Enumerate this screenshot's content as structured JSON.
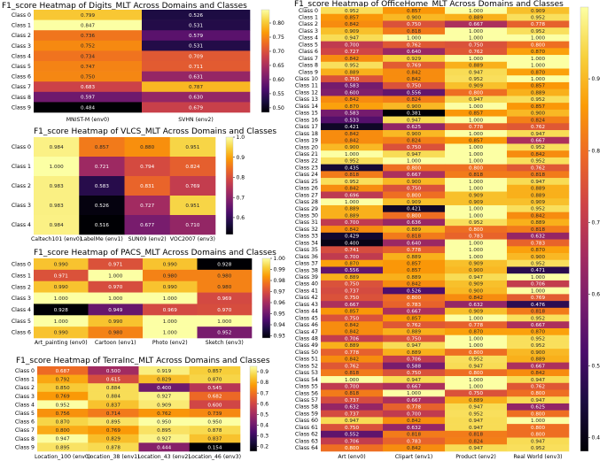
{
  "colormap": [
    "#000004",
    "#1b0c41",
    "#4a0c6b",
    "#781c6d",
    "#a52c60",
    "#cf4446",
    "#ed6925",
    "#fb9b06",
    "#f7d13d",
    "#fcffa4"
  ],
  "chart_data": [
    {
      "type": "heatmap",
      "title": "F1_score Heatmap of Digits_MLT Across Domains and Classes",
      "rows": [
        "Class 0",
        "Class 1",
        "Class 2",
        "Class 3",
        "Class 4",
        "Class 5",
        "Class 6",
        "Class 7",
        "Class 8",
        "Class 9"
      ],
      "columns": [
        "MNIST-M (env0)",
        "SVHN (env2)"
      ],
      "values": [
        [
          0.799,
          0.526
        ],
        [
          0.847,
          0.531
        ],
        [
          0.736,
          0.579
        ],
        [
          0.752,
          0.531
        ],
        [
          0.734,
          0.709
        ],
        [
          0.747,
          0.711
        ],
        [
          0.75,
          0.631
        ],
        [
          0.683,
          0.787
        ],
        [
          0.597,
          0.63
        ],
        [
          0.484,
          0.679
        ]
      ],
      "vmin": 0.484,
      "vmax": 0.847,
      "colorbar_ticks": [
        "0.80",
        "0.75",
        "0.70",
        "0.65",
        "0.60",
        "0.55",
        "0.50"
      ]
    },
    {
      "type": "heatmap",
      "title": "F1_score Heatmap of VLCS_MLT Across Domains and Classes",
      "rows": [
        "Class 0",
        "Class 1",
        "Class 2",
        "Class 3",
        "Class 4"
      ],
      "columns": [
        "Caltech101 (env0)",
        "LabelMe (env1)",
        "SUN09 (env2)",
        "VOC2007 (env3)"
      ],
      "values": [
        [
          0.984,
          0.857,
          0.88,
          0.951
        ],
        [
          1.0,
          0.721,
          0.794,
          0.824
        ],
        [
          0.983,
          0.583,
          0.831,
          0.769
        ],
        [
          0.983,
          0.526,
          0.727,
          0.951
        ],
        [
          0.984,
          0.516,
          0.677,
          0.71
        ]
      ],
      "vmin": 0.516,
      "vmax": 1.0,
      "colorbar_ticks": [
        "1.0",
        "0.9",
        "0.8",
        "0.7",
        "0.6"
      ]
    },
    {
      "type": "heatmap",
      "title": "F1_score Heatmap of PACS_MLT Across Domains and Classes",
      "rows": [
        "Class 0",
        "Class 1",
        "Class 2",
        "Class 3",
        "Class 4",
        "Class 5",
        "Class 6"
      ],
      "columns": [
        "Art_painting (env0)",
        "Cartoon (env1)",
        "Photo (env2)",
        "Sketch (env3)"
      ],
      "values": [
        [
          0.99,
          0.971,
          0.99,
          0.928
        ],
        [
          0.971,
          1.0,
          0.98,
          0.98
        ],
        [
          0.99,
          0.97,
          0.99,
          0.98
        ],
        [
          1.0,
          1.0,
          1.0,
          0.969
        ],
        [
          0.928,
          0.949,
          0.969,
          0.97
        ],
        [
          1.0,
          0.99,
          1.0,
          1.0
        ],
        [
          0.99,
          0.98,
          1.0,
          0.952
        ]
      ],
      "vmin": 0.928,
      "vmax": 1.0,
      "colorbar_ticks": [
        "1.00",
        "0.99",
        "0.98",
        "0.97",
        "0.96",
        "0.95",
        "0.94",
        "0.93"
      ]
    },
    {
      "type": "heatmap",
      "title": "F1_score Heatmap of TerraInc_MLT Across Domains and Classes",
      "rows": [
        "Class 0",
        "Class 1",
        "Class 2",
        "Class 3",
        "Class 4",
        "Class 5",
        "Class 6",
        "Class 7",
        "Class 8",
        "Class 9"
      ],
      "columns": [
        "Location_100 (env0)",
        "Location_38 (env1)",
        "Location_43 (env2)",
        "Location_46 (env3)"
      ],
      "values": [
        [
          0.687,
          0.5,
          0.919,
          0.857
        ],
        [
          0.792,
          0.615,
          0.829,
          0.87
        ],
        [
          0.85,
          0.884,
          0.4,
          0.545
        ],
        [
          0.769,
          0.884,
          0.927,
          0.682
        ],
        [
          0.952,
          0.837,
          0.909,
          0.6
        ],
        [
          0.756,
          0.714,
          0.762,
          0.739
        ],
        [
          0.87,
          0.895,
          0.95,
          0.95
        ],
        [
          0.8,
          0.769,
          0.895,
          0.878
        ],
        [
          0.947,
          0.829,
          0.927,
          0.837
        ],
        [
          0.895,
          0.878,
          0.444,
          0.154
        ]
      ],
      "vmin": 0.154,
      "vmax": 0.95,
      "colorbar_ticks": [
        "0.9",
        "0.8",
        "0.7",
        "0.6",
        "0.5",
        "0.4",
        "0.3",
        "0.2"
      ]
    },
    {
      "type": "heatmap",
      "title": "F1_score Heatmap of OfficeHome_MLT Across Domains and Classes",
      "rows": [
        "Class 0",
        "Class 1",
        "Class 2",
        "Class 3",
        "Class 4",
        "Class 5",
        "Class 6",
        "Class 7",
        "Class 8",
        "Class 9",
        "Class 10",
        "Class 11",
        "Class 12",
        "Class 13",
        "Class 14",
        "Class 15",
        "Class 16",
        "Class 17",
        "Class 18",
        "Class 19",
        "Class 20",
        "Class 21",
        "Class 22",
        "Class 23",
        "Class 24",
        "Class 25",
        "Class 26",
        "Class 27",
        "Class 28",
        "Class 29",
        "Class 30",
        "Class 31",
        "Class 32",
        "Class 33",
        "Class 34",
        "Class 35",
        "Class 36",
        "Class 37",
        "Class 38",
        "Class 39",
        "Class 40",
        "Class 41",
        "Class 42",
        "Class 43",
        "Class 44",
        "Class 45",
        "Class 46",
        "Class 47",
        "Class 48",
        "Class 49",
        "Class 50",
        "Class 51",
        "Class 52",
        "Class 53",
        "Class 54",
        "Class 55",
        "Class 56",
        "Class 57",
        "Class 58",
        "Class 59",
        "Class 60",
        "Class 61",
        "Class 62",
        "Class 63",
        "Class 64"
      ],
      "columns": [
        "Art (env0)",
        "Clipart (env1)",
        "Product (env2)",
        "Real World (env3)"
      ],
      "values": [
        [
          0.952,
          0.857,
          1.0,
          0.909
        ],
        [
          0.857,
          0.9,
          0.889,
          0.952
        ],
        [
          0.842,
          0.75,
          0.667,
          0.778
        ],
        [
          0.909,
          0.818,
          1.0,
          0.952
        ],
        [
          0.947,
          1.0,
          1.0,
          1.0
        ],
        [
          0.7,
          0.762,
          0.75,
          0.8
        ],
        [
          0.727,
          0.64,
          0.762,
          0.87
        ],
        [
          0.842,
          0.929,
          1.0,
          1.0
        ],
        [
          0.952,
          0.769,
          0.889,
          1.0
        ],
        [
          0.889,
          0.842,
          0.947,
          0.87
        ],
        [
          0.75,
          0.842,
          0.952,
          1.0
        ],
        [
          0.583,
          0.75,
          0.909,
          0.857
        ],
        [
          0.6,
          0.556,
          0.8,
          0.889
        ],
        [
          0.842,
          0.824,
          0.947,
          0.952
        ],
        [
          0.87,
          0.9,
          1.0,
          0.857
        ],
        [
          0.583,
          0.381,
          0.857,
          0.9
        ],
        [
          0.533,
          0.947,
          1.0,
          0.824
        ],
        [
          0.421,
          0.625,
          0.778,
          0.762
        ],
        [
          0.842,
          0.9,
          1.0,
          0.947
        ],
        [
          0.842,
          0.824,
          0.857,
          0.667
        ],
        [
          0.9,
          0.75,
          1.0,
          0.952
        ],
        [
          1.0,
          0.947,
          1.0,
          0.842
        ],
        [
          0.952,
          1.0,
          1.0,
          0.952
        ],
        [
          0.435,
          0.8,
          0.8,
          0.762
        ],
        [
          0.818,
          0.667,
          0.818,
          0.818
        ],
        [
          0.952,
          0.9,
          1.0,
          0.947
        ],
        [
          0.842,
          0.75,
          1.0,
          0.889
        ],
        [
          0.696,
          0.8,
          0.909,
          0.889
        ],
        [
          1.0,
          0.909,
          0.909,
          0.909
        ],
        [
          0.889,
          0.421,
          1.0,
          0.952
        ],
        [
          0.889,
          0.8,
          1.0,
          0.842
        ],
        [
          0.7,
          0.636,
          0.952,
          0.889
        ],
        [
          0.842,
          0.889,
          0.8,
          0.818
        ],
        [
          0.429,
          0.818,
          0.783,
          0.632
        ],
        [
          0.4,
          0.64,
          1.0,
          0.783
        ],
        [
          0.741,
          0.778,
          1.0,
          0.87
        ],
        [
          0.7,
          0.889,
          1.0,
          0.9
        ],
        [
          0.87,
          0.857,
          0.909,
          0.952
        ],
        [
          0.556,
          0.857,
          0.9,
          0.471
        ],
        [
          0.889,
          0.889,
          0.947,
          1.0
        ],
        [
          0.75,
          0.842,
          0.909,
          0.706
        ],
        [
          0.737,
          0.526,
          0.9,
          1.0
        ],
        [
          0.75,
          0.8,
          0.842,
          0.769
        ],
        [
          0.667,
          0.783,
          0.632,
          0.476
        ],
        [
          0.857,
          0.667,
          0.909,
          0.818
        ],
        [
          0.75,
          0.857,
          1.0,
          0.952
        ],
        [
          0.842,
          0.762,
          0.778,
          0.667
        ],
        [
          0.842,
          0.889,
          0.87,
          0.87
        ],
        [
          0.706,
          0.75,
          1.0,
          0.952
        ],
        [
          0.889,
          0.947,
          1.0,
          0.952
        ],
        [
          0.778,
          0.889,
          0.8,
          0.9
        ],
        [
          0.842,
          0.706,
          0.952,
          0.889
        ],
        [
          0.762,
          0.588,
          0.947,
          0.667
        ],
        [
          0.818,
          0.75,
          0.8,
          0.842
        ],
        [
          1.0,
          0.947,
          1.0,
          0.947
        ],
        [
          0.7,
          0.667,
          1.0,
          0.762
        ],
        [
          0.818,
          1.0,
          0.75,
          0.8
        ],
        [
          0.737,
          0.667,
          0.889,
          0.947
        ],
        [
          0.632,
          0.778,
          0.947,
          0.625
        ],
        [
          0.737,
          0.7,
          0.952,
          0.8
        ],
        [
          0.947,
          0.842,
          0.947,
          1.0
        ],
        [
          0.75,
          0.632,
          0.947,
          0.8
        ],
        [
          0.552,
          0.818,
          0.818,
          0.8
        ],
        [
          0.706,
          0.783,
          0.824,
          0.947
        ],
        [
          0.8,
          0.842,
          0.947,
          0.952
        ]
      ],
      "vmin": 0.381,
      "vmax": 1.0,
      "colorbar_ticks": [
        "0.9",
        "0.8",
        "0.7",
        "0.6",
        "0.5",
        "0.4"
      ]
    }
  ]
}
